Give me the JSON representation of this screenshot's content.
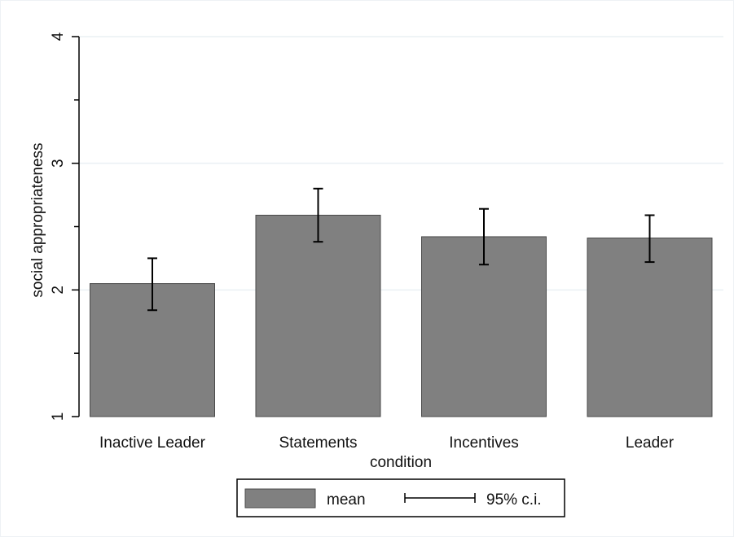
{
  "chart_data": {
    "type": "bar",
    "title": "",
    "xlabel": "condition",
    "ylabel": "social appropriateness",
    "categories": [
      "Inactive Leader",
      "Statements",
      "Incentives",
      "Leader"
    ],
    "series": [
      {
        "name": "mean",
        "values": [
          2.05,
          2.59,
          2.42,
          2.41
        ],
        "ci_low": [
          1.84,
          2.38,
          2.2,
          2.22
        ],
        "ci_high": [
          2.25,
          2.8,
          2.64,
          2.59
        ]
      }
    ],
    "ylim": [
      1,
      4
    ],
    "yticks": [
      1,
      2,
      3,
      4
    ],
    "y_minor_ticks": [
      1.5,
      2.5,
      3.5
    ],
    "grid": true,
    "legend": {
      "placement": "bottom",
      "entries": [
        {
          "label": "mean",
          "kind": "bar"
        },
        {
          "label": "95% c.i.",
          "kind": "errorbar"
        }
      ]
    },
    "colors": {
      "bar_fill": "#808080",
      "bar_stroke": "#4a4a4a",
      "errorbar": "#000000",
      "grid": "#eaf0f4"
    }
  }
}
